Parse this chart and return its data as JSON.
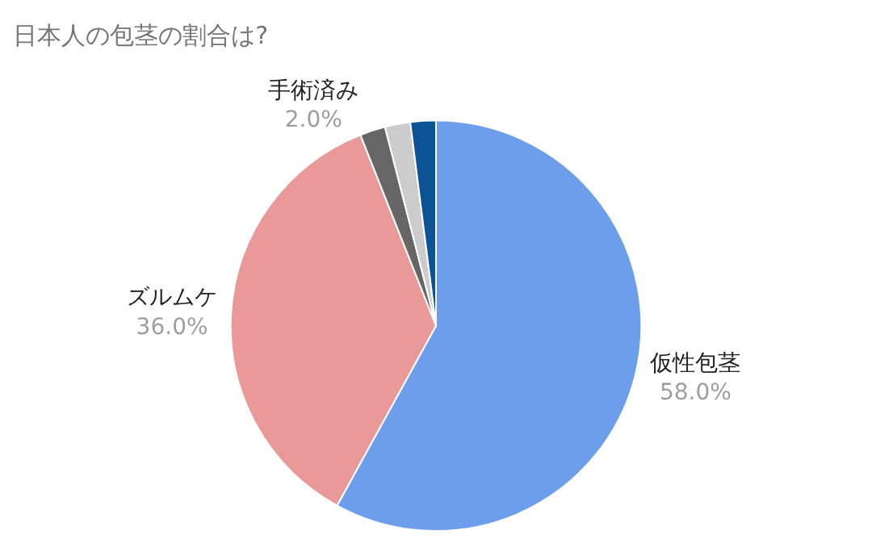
{
  "chart_data": {
    "type": "pie",
    "title": "日本人の包茎の割合は?",
    "categories": [
      "仮性包茎",
      "ズルムケ",
      "手術済み",
      null,
      null
    ],
    "values": [
      58,
      36,
      2,
      2,
      2
    ],
    "colors": [
      "#6d9eeb",
      "#ea9999",
      "#666666",
      "#cccccc",
      "#0b5394"
    ],
    "value_labels": [
      "58.0%",
      "36.0%",
      "2.0%",
      null,
      null
    ],
    "legend": false
  }
}
